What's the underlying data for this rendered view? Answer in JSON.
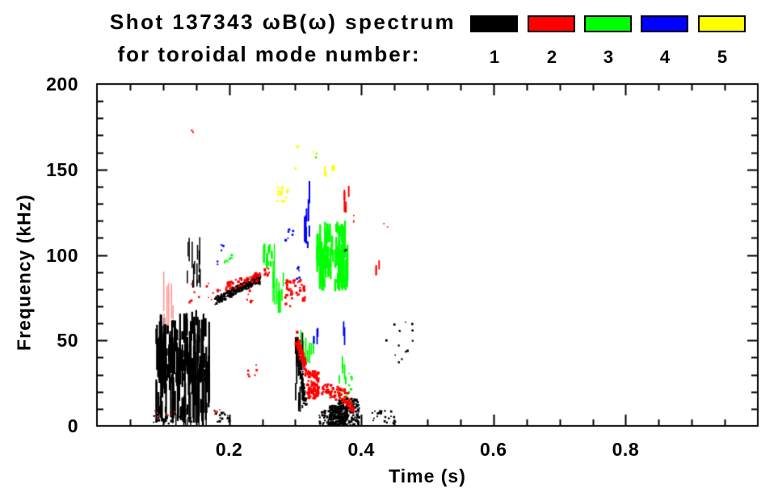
{
  "title": {
    "line1": "Shot 137343 ωB(ω) spectrum",
    "line2": "for toroidal mode number:"
  },
  "legend": {
    "modes": [
      {
        "label": "1",
        "color": "#000000"
      },
      {
        "label": "2",
        "color": "#ff0000"
      },
      {
        "label": "3",
        "color": "#00ff00"
      },
      {
        "label": "4",
        "color": "#0000ff"
      },
      {
        "label": "5",
        "color": "#ffff00"
      }
    ]
  },
  "chart_data": {
    "type": "scatter",
    "title": "Shot 137343 ωB(ω) spectrum for toroidal mode number: 1 2 3 4 5",
    "xlabel": "Time (s)",
    "ylabel": "Frequency (kHz)",
    "xlim": [
      0,
      1
    ],
    "ylim": [
      0,
      200
    ],
    "x_major_ticks": [
      0.2,
      0.4,
      0.6,
      0.8
    ],
    "x_tick_labels": [
      "0.2",
      "0.4",
      "0.6",
      "0.8"
    ],
    "x_minor_step": 0.05,
    "y_major_ticks": [
      0,
      50,
      100,
      150,
      200
    ],
    "y_tick_labels": [
      "0",
      "50",
      "100",
      "150",
      "200"
    ],
    "y_minor_step": 10,
    "grid": false,
    "legend_position": "top-right",
    "draw_order": [
      2,
      3,
      4,
      0,
      1
    ],
    "series": [
      {
        "name": "n=1",
        "mode": 1,
        "color": "#000000",
        "clusters": [
          {
            "type": "dots",
            "t": [
              0.085,
              0.146
            ],
            "f": [
              1,
              7
            ],
            "n": 26,
            "s": [
              1.5,
              3.5
            ]
          },
          {
            "type": "dots",
            "t": [
              0.178,
              0.201
            ],
            "f": [
              1,
              9
            ],
            "n": 16,
            "s": [
              1.5,
              3.5
            ]
          },
          {
            "type": "vstreaks",
            "t": [
              0.089,
              0.17
            ],
            "f": [
              10,
              68
            ],
            "n": 110,
            "len": [
              8,
              34
            ],
            "w": 2.2
          },
          {
            "type": "vstreaks",
            "t": [
              0.092,
              0.168
            ],
            "f": [
              28,
              66
            ],
            "n": 75,
            "len": [
              4,
              14
            ],
            "w": 2.8
          },
          {
            "type": "vstreaks",
            "t": [
              0.112,
              0.17
            ],
            "f": [
              3,
              26
            ],
            "n": 10,
            "len": [
              12,
              22
            ],
            "w": 1.4
          },
          {
            "type": "vstreaks",
            "t": [
              0.136,
              0.159
            ],
            "f": [
              85,
              114
            ],
            "n": 14,
            "len": [
              5,
              18
            ],
            "w": 1.5
          },
          {
            "type": "band",
            "from": [
              0.179,
              73
            ],
            "to": [
              0.248,
              87
            ],
            "jitter": 2.5,
            "n": 230,
            "s": [
              1.5,
              3
            ]
          },
          {
            "type": "band",
            "from": [
              0.21,
              80
            ],
            "to": [
              0.246,
              85
            ],
            "jitter": 2,
            "n": 70,
            "s": [
              1.5,
              3
            ]
          },
          {
            "type": "band",
            "from": [
              0.302,
              50
            ],
            "to": [
              0.316,
              11
            ],
            "jitter": 3,
            "n": 140,
            "s": [
              1.5,
              3
            ]
          },
          {
            "type": "vstreaks",
            "t": [
              0.299,
              0.313
            ],
            "f": [
              12,
              55
            ],
            "n": 18,
            "len": [
              6,
              16
            ],
            "w": 1.8
          },
          {
            "type": "dots",
            "t": [
              0.336,
              0.362
            ],
            "f": [
              1,
              9
            ],
            "n": 45,
            "s": [
              1.5,
              3
            ]
          },
          {
            "type": "dots",
            "t": [
              0.352,
              0.38
            ],
            "f": [
              0,
              12
            ],
            "n": 150,
            "s": [
              1.5,
              3.5
            ]
          },
          {
            "type": "dots",
            "t": [
              0.365,
              0.397
            ],
            "f": [
              0,
              16
            ],
            "n": 160,
            "s": [
              1.5,
              3.5
            ]
          },
          {
            "type": "dots",
            "t": [
              0.415,
              0.452
            ],
            "f": [
              1,
              9
            ],
            "n": 22,
            "s": [
              1.5,
              3
            ]
          },
          {
            "type": "dots",
            "t": [
              0.438,
              0.478
            ],
            "f": [
              34,
              64
            ],
            "n": 14,
            "s": [
              1.5,
              3
            ]
          },
          {
            "type": "dots",
            "t": [
              0.375,
              0.379
            ],
            "f": [
              99,
              103
            ],
            "n": 2,
            "s": [
              2,
              3
            ]
          }
        ]
      },
      {
        "name": "n=2",
        "mode": 2,
        "color": "#ff0000",
        "clusters": [
          {
            "type": "dots",
            "t": [
              0.143,
              0.146
            ],
            "f": [
              170,
              173
            ],
            "n": 2,
            "s": [
              1.5,
              2.5
            ]
          },
          {
            "type": "vstreaks",
            "t": [
              0.096,
              0.117
            ],
            "f": [
              65,
              93
            ],
            "n": 7,
            "len": [
              10,
              26
            ],
            "w": 1.6,
            "color": "#ff9999"
          },
          {
            "type": "dots",
            "t": [
              0.14,
              0.178
            ],
            "f": [
              72,
              84
            ],
            "n": 10,
            "s": [
              1.5,
              3
            ]
          },
          {
            "type": "band",
            "from": [
              0.177,
              79
            ],
            "to": [
              0.262,
              90
            ],
            "jitter": 2.5,
            "n": 55,
            "s": [
              2,
              3.5
            ]
          },
          {
            "type": "dots",
            "t": [
              0.227,
              0.242
            ],
            "f": [
              27,
              36
            ],
            "n": 7,
            "s": [
              1.5,
              3
            ]
          },
          {
            "type": "dots",
            "t": [
              0.227,
              0.238
            ],
            "f": [
              72,
              80
            ],
            "n": 7,
            "s": [
              1.5,
              3
            ]
          },
          {
            "type": "dots",
            "t": [
              0.283,
              0.315
            ],
            "f": [
              70,
              86
            ],
            "n": 42,
            "s": [
              2,
              3.5
            ]
          },
          {
            "type": "band",
            "from": [
              0.301,
              52
            ],
            "to": [
              0.317,
              33
            ],
            "jitter": 4,
            "n": 75,
            "s": [
              2,
              3.5
            ]
          },
          {
            "type": "dots",
            "t": [
              0.318,
              0.335
            ],
            "f": [
              16,
              32
            ],
            "n": 85,
            "s": [
              2,
              4
            ]
          },
          {
            "type": "band",
            "from": [
              0.34,
              22
            ],
            "to": [
              0.379,
              17
            ],
            "jitter": 4,
            "n": 60,
            "s": [
              2,
              3.5
            ]
          },
          {
            "type": "band",
            "from": [
              0.379,
              15
            ],
            "to": [
              0.388,
              8
            ],
            "jitter": 2,
            "n": 22,
            "s": [
              2,
              3
            ]
          },
          {
            "type": "vstreaks",
            "t": [
              0.374,
              0.382
            ],
            "f": [
              127,
              142
            ],
            "n": 5,
            "len": [
              4,
              12
            ],
            "w": 2
          },
          {
            "type": "dots",
            "t": [
              0.386,
              0.392
            ],
            "f": [
              119,
              124
            ],
            "n": 3,
            "s": [
              1.5,
              2.5
            ]
          },
          {
            "type": "vstreaks",
            "t": [
              0.421,
              0.427
            ],
            "f": [
              90,
              99
            ],
            "n": 3,
            "len": [
              4,
              8
            ],
            "w": 1.8
          },
          {
            "type": "dots",
            "t": [
              0.434,
              0.44
            ],
            "f": [
              116,
              120
            ],
            "n": 2,
            "s": [
              1.5,
              2.5
            ]
          },
          {
            "type": "dots",
            "t": [
              0.086,
              0.134
            ],
            "f": [
              5,
              9
            ],
            "n": 5,
            "s": [
              1.5,
              2.5
            ]
          },
          {
            "type": "dots",
            "t": [
              0.178,
              0.187
            ],
            "f": [
              5,
              10
            ],
            "n": 4,
            "s": [
              1.5,
              2.5
            ]
          }
        ]
      },
      {
        "name": "n=3",
        "mode": 3,
        "color": "#00ff00",
        "clusters": [
          {
            "type": "band",
            "from": [
              0.186,
              94
            ],
            "to": [
              0.206,
              100
            ],
            "jitter": 1.5,
            "n": 10,
            "s": [
              1.5,
              3
            ]
          },
          {
            "type": "vstreaks",
            "t": [
              0.252,
              0.265
            ],
            "f": [
              95,
              108
            ],
            "n": 10,
            "len": [
              4,
              12
            ],
            "w": 2.6
          },
          {
            "type": "vstreaks",
            "t": [
              0.266,
              0.269
            ],
            "f": [
              77,
              109
            ],
            "n": 4,
            "len": [
              10,
              28
            ],
            "w": 1.5
          },
          {
            "type": "vstreaks",
            "t": [
              0.272,
              0.287
            ],
            "f": [
              70,
              98
            ],
            "n": 9,
            "len": [
              5,
              16
            ],
            "w": 1.8
          },
          {
            "type": "vstreaks",
            "t": [
              0.304,
              0.331
            ],
            "f": [
              40,
              62
            ],
            "n": 8,
            "len": [
              6,
              14
            ],
            "w": 1.8
          },
          {
            "type": "dots",
            "t": [
              0.349,
              0.358
            ],
            "f": [
              15,
              22
            ],
            "n": 5,
            "s": [
              1.5,
              3
            ]
          },
          {
            "type": "dots",
            "t": [
              0.368,
              0.389
            ],
            "f": [
              17,
              31
            ],
            "n": 12,
            "s": [
              1.5,
              3
            ]
          },
          {
            "type": "vstreaks",
            "t": [
              0.333,
              0.38
            ],
            "f": [
              85,
              123
            ],
            "n": 55,
            "len": [
              5,
              26
            ],
            "w": 2.4
          },
          {
            "type": "vstreaks",
            "t": [
              0.347,
              0.374
            ],
            "f": [
              95,
              120
            ],
            "n": 30,
            "len": [
              4,
              12
            ],
            "w": 2.6
          },
          {
            "type": "vstreaks",
            "t": [
              0.365,
              0.38
            ],
            "f": [
              27,
              41
            ],
            "n": 6,
            "len": [
              5,
              12
            ],
            "w": 1.8
          },
          {
            "type": "dots",
            "t": [
              0.331,
              0.335
            ],
            "f": [
              156,
              160
            ],
            "n": 2,
            "s": [
              1.5,
              2.5
            ]
          }
        ]
      },
      {
        "name": "n=4",
        "mode": 4,
        "color": "#0000ff",
        "clusters": [
          {
            "type": "dots",
            "t": [
              0.188,
              0.193
            ],
            "f": [
              100,
              106
            ],
            "n": 5,
            "s": [
              1.5,
              2.5
            ]
          },
          {
            "type": "dots",
            "t": [
              0.182,
              0.185
            ],
            "f": [
              94,
              97
            ],
            "n": 2,
            "s": [
              1.5,
              2.5
            ]
          },
          {
            "type": "dots",
            "t": [
              0.285,
              0.297
            ],
            "f": [
              103,
              115
            ],
            "n": 7,
            "s": [
              1.5,
              3
            ]
          },
          {
            "type": "dots",
            "t": [
              0.301,
              0.309
            ],
            "f": [
              86,
              95
            ],
            "n": 6,
            "s": [
              1.5,
              3
            ]
          },
          {
            "type": "vstreaks",
            "t": [
              0.313,
              0.322
            ],
            "f": [
              108,
              154
            ],
            "n": 8,
            "len": [
              5,
              18
            ],
            "w": 2
          },
          {
            "type": "vstreaks",
            "t": [
              0.325,
              0.335
            ],
            "f": [
              50,
              60
            ],
            "n": 4,
            "len": [
              4,
              10
            ],
            "w": 1.8
          },
          {
            "type": "vstreaks",
            "t": [
              0.373,
              0.377
            ],
            "f": [
              50,
              62
            ],
            "n": 2,
            "len": [
              6,
              12
            ],
            "w": 1.8
          }
        ]
      },
      {
        "name": "n=5",
        "mode": 5,
        "color": "#ffff00",
        "clusters": [
          {
            "type": "dots",
            "t": [
              0.272,
              0.29
            ],
            "f": [
              130,
              140
            ],
            "n": 12,
            "s": [
              2,
              3.5
            ]
          },
          {
            "type": "dots",
            "t": [
              0.302,
              0.305
            ],
            "f": [
              162,
              166
            ],
            "n": 2,
            "s": [
              2,
              3
            ]
          },
          {
            "type": "dots",
            "t": [
              0.328,
              0.332
            ],
            "f": [
              157,
              161
            ],
            "n": 2,
            "s": [
              2,
              3
            ]
          },
          {
            "type": "vstreaks",
            "t": [
              0.343,
              0.348
            ],
            "f": [
              147,
              155
            ],
            "n": 2,
            "len": [
              4,
              8
            ],
            "w": 2.2
          },
          {
            "type": "vstreaks",
            "t": [
              0.356,
              0.36
            ],
            "f": [
              148,
              153
            ],
            "n": 2,
            "len": [
              3,
              6
            ],
            "w": 2.2
          },
          {
            "type": "dots",
            "t": [
              0.298,
              0.301
            ],
            "f": [
              149,
              152
            ],
            "n": 1,
            "s": [
              2,
              3
            ]
          }
        ]
      }
    ]
  }
}
